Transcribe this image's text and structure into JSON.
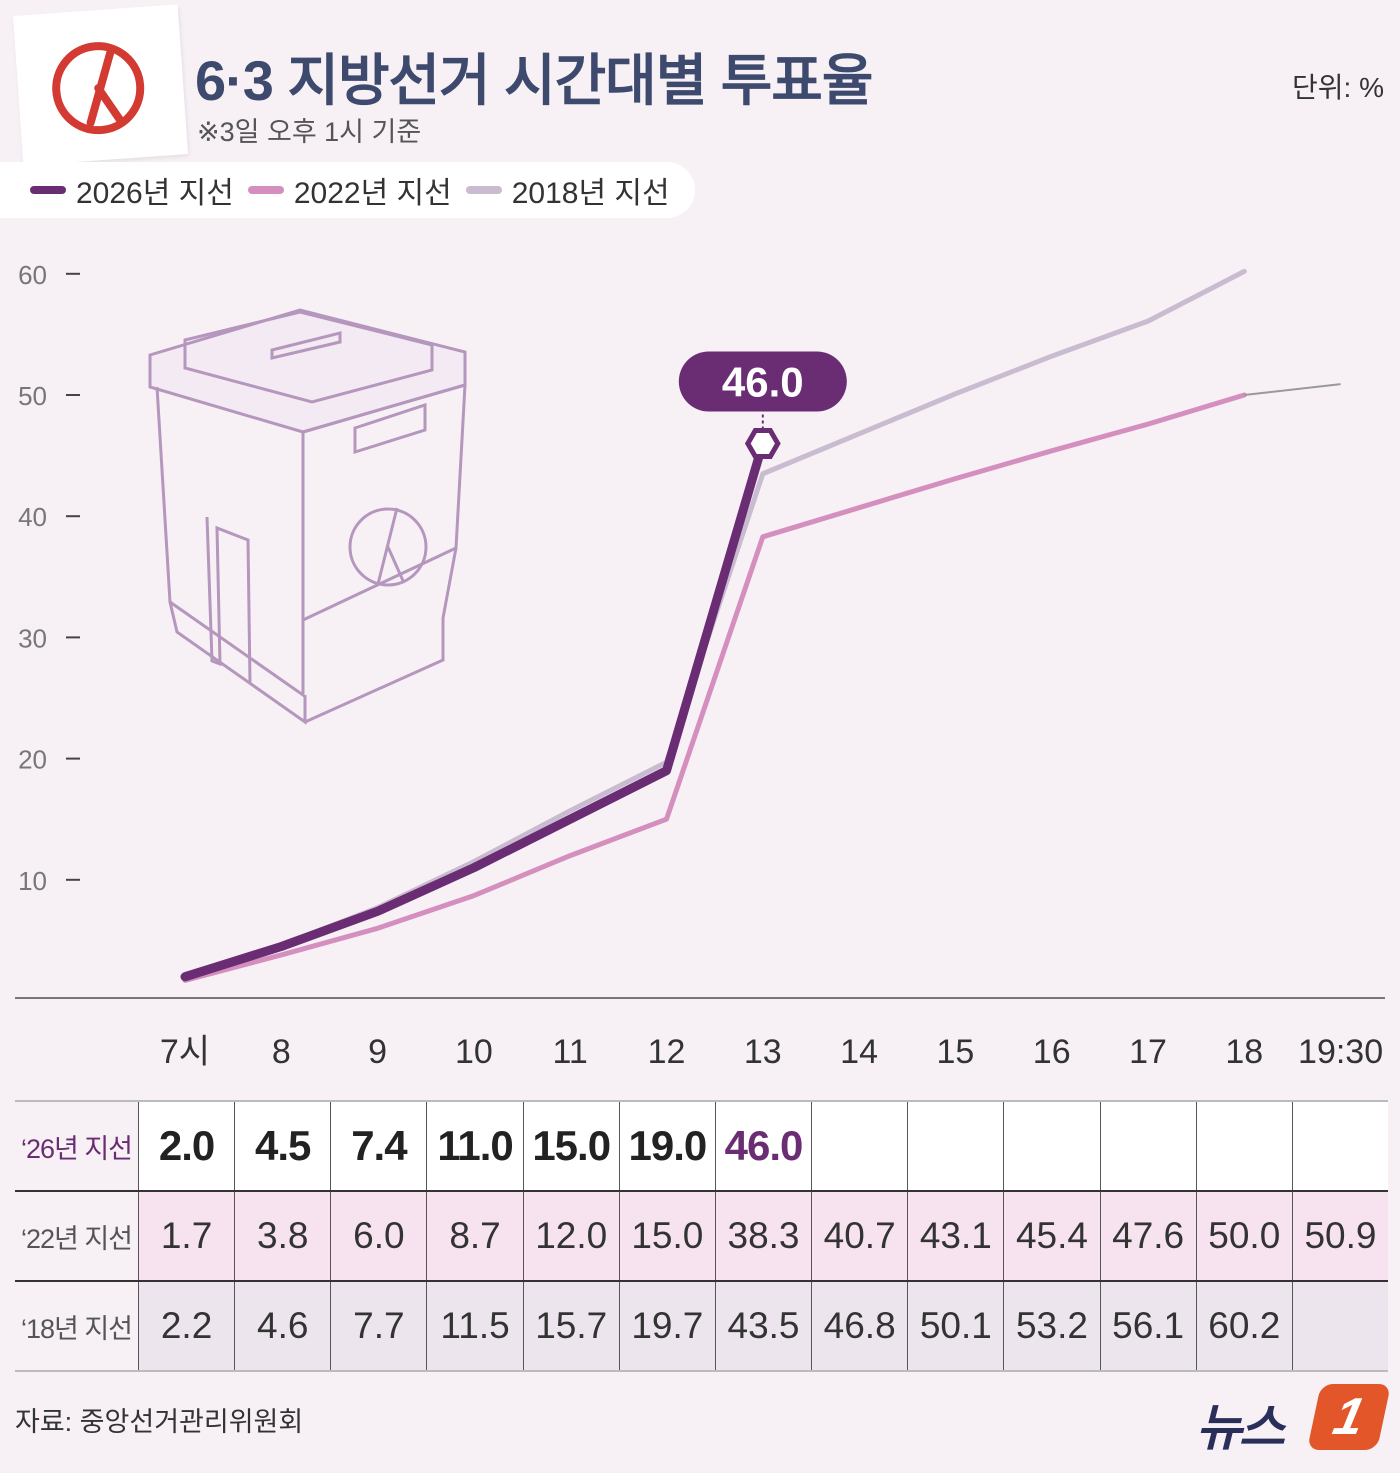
{
  "title": "6·3 지방선거 시간대별 투표율",
  "subtitle": "※3일 오후 1시 기준",
  "unit": "단위: %",
  "legend": [
    {
      "label": "2026년 지선",
      "color": "#6a2d74"
    },
    {
      "label": "2022년 지선",
      "color": "#d58fbe"
    },
    {
      "label": "2018년 지선",
      "color": "#c9bcd0"
    }
  ],
  "chart_data": {
    "type": "line",
    "x": [
      "7시",
      "8",
      "9",
      "10",
      "11",
      "12",
      "13",
      "14",
      "15",
      "16",
      "17",
      "18",
      "19:30"
    ],
    "ylim": [
      0,
      60
    ],
    "yticks": [
      "10",
      "20",
      "30",
      "40",
      "50",
      "60"
    ],
    "series": [
      {
        "name": "2026년 지선",
        "color": "#6a2d74",
        "values": [
          2.0,
          4.5,
          7.4,
          11.0,
          15.0,
          19.0,
          46.0,
          null,
          null,
          null,
          null,
          null,
          null
        ]
      },
      {
        "name": "2022년 지선",
        "color": "#d58fbe",
        "values": [
          1.7,
          3.8,
          6.0,
          8.7,
          12.0,
          15.0,
          38.3,
          40.7,
          43.1,
          45.4,
          47.6,
          50.0,
          50.9
        ]
      },
      {
        "name": "2018년 지선",
        "color": "#c9bcd0",
        "values": [
          2.2,
          4.6,
          7.7,
          11.5,
          15.7,
          19.7,
          43.5,
          46.8,
          50.1,
          53.2,
          56.1,
          60.2,
          null
        ]
      }
    ],
    "callout": "46.0"
  },
  "table": {
    "rows": [
      {
        "label": "‘26년 지선",
        "values": [
          "2.0",
          "4.5",
          "7.4",
          "11.0",
          "15.0",
          "19.0",
          "46.0",
          "",
          "",
          "",
          "",
          "",
          ""
        ]
      },
      {
        "label": "‘22년 지선",
        "values": [
          "1.7",
          "3.8",
          "6.0",
          "8.7",
          "12.0",
          "15.0",
          "38.3",
          "40.7",
          "43.1",
          "45.4",
          "47.6",
          "50.0",
          "50.9"
        ]
      },
      {
        "label": "‘18년 지선",
        "values": [
          "2.2",
          "4.6",
          "7.7",
          "11.5",
          "15.7",
          "19.7",
          "43.5",
          "46.8",
          "50.1",
          "53.2",
          "56.1",
          "60.2",
          ""
        ]
      }
    ]
  },
  "source": "자료: 중앙선거관리위원회",
  "brand": {
    "name": "뉴스",
    "badge": "1"
  }
}
